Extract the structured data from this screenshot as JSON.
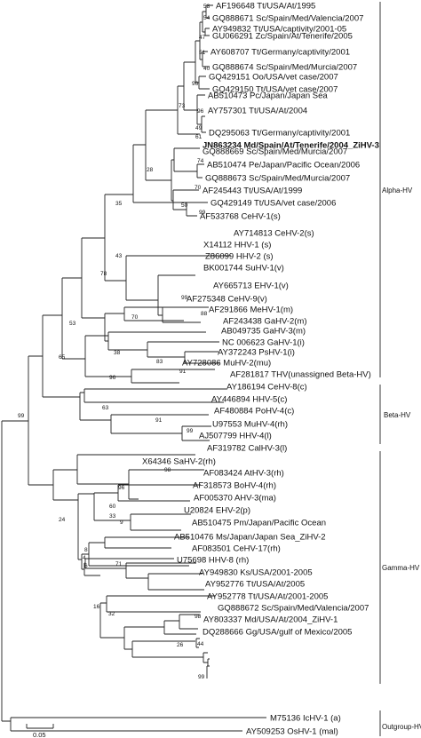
{
  "taxa": [
    "AF196648 Tt/USA/At/1995",
    "GQ888671 Sc/Spain/Med/Valencia/2007",
    "AY949832 Tt/USA/captivity/2001-05",
    "GU066291 Zc/Spain/At/Tenerife/2005",
    "AY608707 Tt/Germany/captivity/2001",
    "GQ888674 Sc/Spain/Med/Murcia/2007",
    "GQ429151 Oo/USA/vet case/2007",
    "GQ429150 Tt/USA/vet case/2007",
    "AB510473 Pc/Japan/Japan Sea",
    "AY757301 Tt/USA/At/2004",
    "DQ295063 Tt/Germany/captivity/2001",
    "JN863234 Md/Spain/At/Tenerife/2004_ZiHV-3",
    "GQ888669 Sc/Spain/Med/Murcia/2007",
    "AB510474 Pe/Japan/Pacific Ocean/2006",
    "GQ888673 Sc/Spain/Med/Murcia/2007",
    "AF245443 Tt/USA/At/1999",
    "GQ429149 Tt/USA/vet case/2006",
    "AF533768 CeHV-1(s)",
    "AY714813 CeHV-2(s)",
    "X14112 HHV-1 (s)",
    "Z86099 HHV-2 (s)",
    "BK001744 SuHV-1(v)",
    "AY665713 EHV-1(v)",
    "AF275348 CeHV-9(v)",
    "AF291866 MeHV-1(m)",
    "AF243438 GaHV-2(m)",
    "AB049735 GaHV-3(m)",
    "NC 006623 GaHV-1(i)",
    "AY372243 PsHV-1(i)",
    "AY728086 MuHV-2(mu)",
    "AF281817 THV(unassigned Beta-HV)",
    "AY186194 CeHV-8(c)",
    "AY446894 HHV-5(c)",
    "AF480884 PoHV-4(c)",
    "U97553 MuHV-4(rh)",
    "AJ507799 HHV-4(l)",
    "AF319782 CalHV-3(l)",
    "X64346 SaHV-2(rh)",
    "AF083424 AtHV-3(rh)",
    "AF318573 BoHV-4(rh)",
    "AF005370 AHV-3(ma)",
    "U20824 EHV-2(p)",
    "AB510475 Pm/Japan/Pacific Ocean",
    "AB510476 Ms/Japan/Japan Sea_ZiHV-2",
    "AF083501 CeHV-17(rh)",
    "U75698 HHV-8 (rh)",
    "AY949830 Ks/USA/2001-2005",
    "AY952776 Tt/USA/At/2005",
    "AY952778 Tt/USA/At/2001-2005",
    "GQ888672 Sc/Spain/Med/Valencia/2007",
    "AY803337 Md/USA/At/2004_ZiHV-1",
    "DQ288666 Gg/USA/gulf of Mexico/2005",
    "M75136 IcHV-1 (a)",
    "AY509253 OsHV-1 (mal)"
  ],
  "bold_taxon_index": 11,
  "bootstrap": [
    "58",
    "54",
    "47",
    "51",
    "96",
    "40",
    "73",
    "96",
    "49",
    "61",
    "28",
    "74",
    "70",
    "50",
    "99",
    "35",
    "43",
    "99",
    "88",
    "78",
    "70",
    "53",
    "38",
    "83",
    "91",
    "65",
    "96",
    "99",
    "63",
    "91",
    "99",
    "98",
    "96",
    "60",
    "24",
    "33",
    "9",
    "8",
    "4",
    "6",
    "71",
    "16",
    "32",
    "98",
    "26",
    "44",
    "99"
  ],
  "groups": [
    "Alpha-HV",
    "Beta-HV",
    "Gamma-HV",
    "Outgroup-HV"
  ],
  "scale_label": "0.05"
}
